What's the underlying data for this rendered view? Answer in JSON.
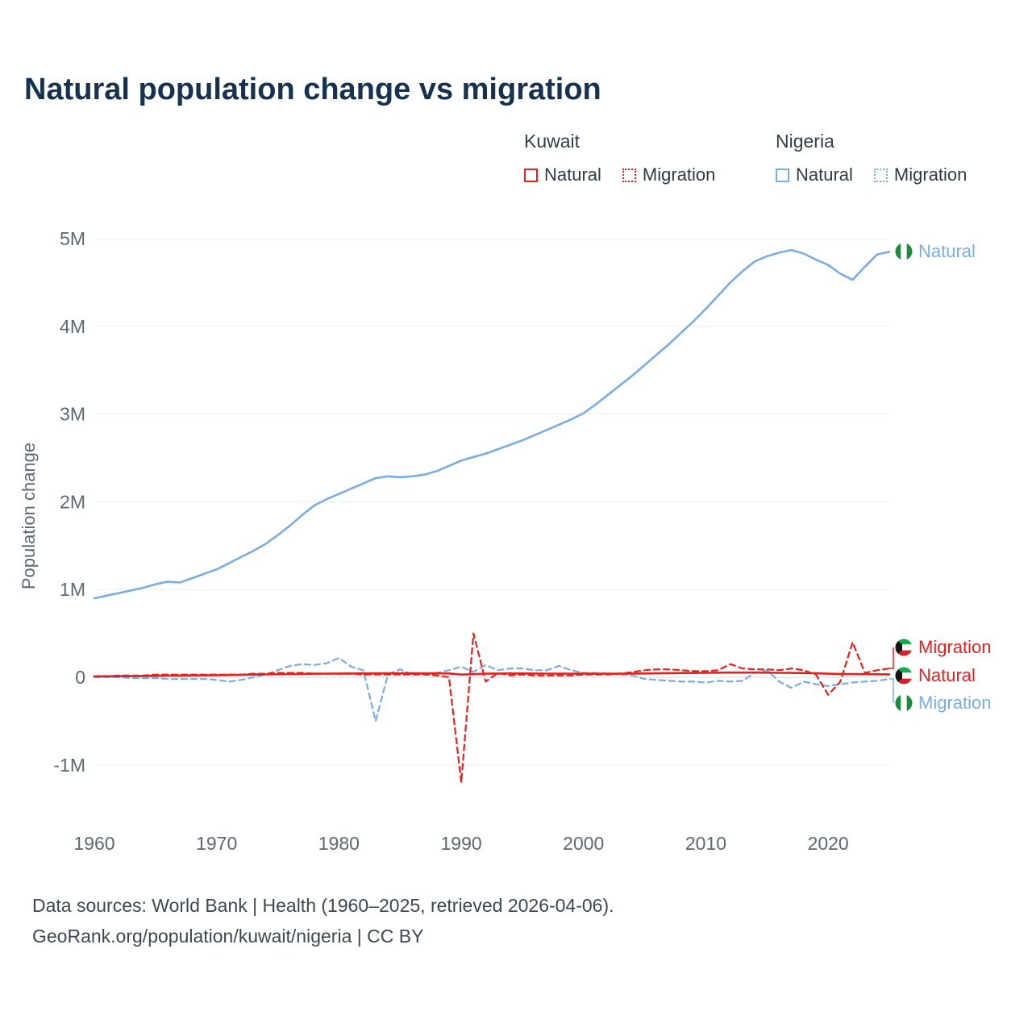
{
  "title": "Natural population change vs migration",
  "legend": {
    "groups": [
      {
        "country": "Kuwait",
        "entries": [
          {
            "label": "Natural",
            "style": "solid",
            "color": "#e0231f"
          },
          {
            "label": "Migration",
            "style": "dotted",
            "color": "#e0231f"
          }
        ]
      },
      {
        "country": "Nigeria",
        "entries": [
          {
            "label": "Natural",
            "style": "solid",
            "color": "#79ade4"
          },
          {
            "label": "Migration",
            "style": "dotted",
            "color": "#79ade4"
          }
        ]
      }
    ]
  },
  "colors": {
    "kuwait_red": "#e0231f",
    "nigeria_blue": "#79ade4",
    "title_navy": "#16324f",
    "axis_gray": "#5d6875",
    "gridline": "#ebedef"
  },
  "end_labels": [
    {
      "label": "Natural",
      "country": "Nigeria",
      "color": "#79ade4"
    },
    {
      "label": "Migration",
      "country": "Kuwait",
      "color": "#e0231f"
    },
    {
      "label": "Natural",
      "country": "Kuwait",
      "color": "#e0231f"
    },
    {
      "label": "Migration",
      "country": "Nigeria",
      "color": "#79ade4"
    }
  ],
  "chart_data": {
    "type": "line",
    "title": "Natural population change vs migration",
    "ylabel": "Population change",
    "xlabel": "",
    "unit": "millions",
    "ylim": [
      -1.4,
      5.2
    ],
    "grid": "horizontal",
    "legend_position": "top-right",
    "yticks": [
      {
        "v": 5,
        "label": "5M"
      },
      {
        "v": 4,
        "label": "4M"
      },
      {
        "v": 3,
        "label": "3M"
      },
      {
        "v": 2,
        "label": "2M"
      },
      {
        "v": 1,
        "label": "1M"
      },
      {
        "v": 0,
        "label": "0"
      },
      {
        "v": -1,
        "label": "-1M"
      }
    ],
    "xticks": [
      {
        "v": 1960,
        "label": "1960"
      },
      {
        "v": 1970,
        "label": "1970"
      },
      {
        "v": 1980,
        "label": "1980"
      },
      {
        "v": 1990,
        "label": "1990"
      },
      {
        "v": 2000,
        "label": "2000"
      },
      {
        "v": 2010,
        "label": "2010"
      },
      {
        "v": 2020,
        "label": "2020"
      }
    ],
    "years": [
      1960,
      1961,
      1962,
      1963,
      1964,
      1965,
      1966,
      1967,
      1968,
      1969,
      1970,
      1971,
      1972,
      1973,
      1974,
      1975,
      1976,
      1977,
      1978,
      1979,
      1980,
      1981,
      1982,
      1983,
      1984,
      1985,
      1986,
      1987,
      1988,
      1989,
      1990,
      1991,
      1992,
      1993,
      1994,
      1995,
      1996,
      1997,
      1998,
      1999,
      2000,
      2001,
      2002,
      2003,
      2004,
      2005,
      2006,
      2007,
      2008,
      2009,
      2010,
      2011,
      2012,
      2013,
      2014,
      2015,
      2016,
      2017,
      2018,
      2019,
      2020,
      2021,
      2022,
      2023,
      2024,
      2025
    ],
    "series": [
      {
        "id": "nigeria-natural",
        "name": "Nigeria Natural",
        "color": "#79ade4",
        "dash": "",
        "width": 2.6,
        "values": [
          0.9,
          0.93,
          0.96,
          0.99,
          1.02,
          1.06,
          1.09,
          1.08,
          1.13,
          1.18,
          1.23,
          1.3,
          1.37,
          1.44,
          1.52,
          1.62,
          1.73,
          1.85,
          1.96,
          2.03,
          2.09,
          2.15,
          2.21,
          2.27,
          2.29,
          2.28,
          2.29,
          2.31,
          2.35,
          2.41,
          2.47,
          2.51,
          2.55,
          2.6,
          2.65,
          2.7,
          2.76,
          2.82,
          2.88,
          2.94,
          3.01,
          3.11,
          3.22,
          3.33,
          3.44,
          3.56,
          3.68,
          3.8,
          3.93,
          4.06,
          4.2,
          4.35,
          4.5,
          4.63,
          4.74,
          4.8,
          4.84,
          4.87,
          4.83,
          4.76,
          4.7,
          4.6,
          4.53,
          4.68,
          4.82,
          4.85
        ]
      },
      {
        "id": "nigeria-migration",
        "name": "Nigeria Migration",
        "color": "#79ade4",
        "dash": "7 5",
        "width": 2.2,
        "values": [
          0.0,
          0.0,
          0.0,
          -0.01,
          -0.01,
          -0.01,
          -0.02,
          -0.02,
          -0.02,
          -0.02,
          -0.03,
          -0.05,
          -0.03,
          0.0,
          0.03,
          0.08,
          0.13,
          0.15,
          0.14,
          0.16,
          0.22,
          0.12,
          0.08,
          -0.5,
          0.03,
          0.09,
          0.03,
          0.04,
          0.05,
          0.08,
          0.12,
          0.06,
          0.14,
          0.08,
          0.1,
          0.1,
          0.08,
          0.08,
          0.13,
          0.08,
          0.05,
          0.05,
          0.04,
          0.03,
          0.02,
          -0.02,
          -0.03,
          -0.04,
          -0.05,
          -0.05,
          -0.06,
          -0.04,
          -0.05,
          -0.04,
          0.05,
          0.08,
          -0.05,
          -0.12,
          -0.05,
          -0.08,
          -0.1,
          -0.08,
          -0.06,
          -0.05,
          -0.04,
          -0.02
        ]
      },
      {
        "id": "kuwait-migration",
        "name": "Kuwait Migration",
        "color": "#e0231f",
        "dash": "7 5",
        "width": 2.2,
        "values": [
          0.01,
          0.01,
          0.02,
          0.02,
          0.02,
          0.03,
          0.03,
          0.03,
          0.03,
          0.03,
          0.03,
          0.03,
          0.03,
          0.04,
          0.04,
          0.05,
          0.05,
          0.05,
          0.04,
          0.04,
          0.04,
          0.04,
          0.03,
          0.03,
          0.03,
          0.03,
          0.03,
          0.03,
          0.02,
          0.0,
          -1.2,
          0.5,
          -0.05,
          0.05,
          0.02,
          0.03,
          0.02,
          0.02,
          0.02,
          0.02,
          0.03,
          0.03,
          0.03,
          0.04,
          0.06,
          0.08,
          0.09,
          0.09,
          0.08,
          0.07,
          0.07,
          0.08,
          0.15,
          0.1,
          0.09,
          0.09,
          0.08,
          0.1,
          0.08,
          0.03,
          -0.2,
          -0.05,
          0.4,
          0.05,
          0.08,
          0.1
        ]
      },
      {
        "id": "kuwait-natural",
        "name": "Kuwait Natural",
        "color": "#e0231f",
        "dash": "",
        "width": 2.6,
        "values": [
          0.01,
          0.011,
          0.012,
          0.013,
          0.015,
          0.016,
          0.018,
          0.019,
          0.021,
          0.022,
          0.024,
          0.026,
          0.028,
          0.03,
          0.032,
          0.034,
          0.036,
          0.038,
          0.04,
          0.041,
          0.042,
          0.043,
          0.044,
          0.044,
          0.045,
          0.045,
          0.045,
          0.044,
          0.044,
          0.043,
          0.03,
          0.035,
          0.04,
          0.042,
          0.043,
          0.043,
          0.042,
          0.041,
          0.04,
          0.04,
          0.04,
          0.04,
          0.04,
          0.041,
          0.042,
          0.043,
          0.045,
          0.047,
          0.049,
          0.05,
          0.051,
          0.052,
          0.053,
          0.053,
          0.053,
          0.052,
          0.051,
          0.05,
          0.048,
          0.046,
          0.04,
          0.038,
          0.036,
          0.035,
          0.034,
          0.033
        ]
      }
    ]
  },
  "footer": {
    "line1": "Data sources: World Bank | Health (1960–2025, retrieved 2026-04-06).",
    "line2": "GeoRank.org/population/kuwait/nigeria | CC BY"
  }
}
